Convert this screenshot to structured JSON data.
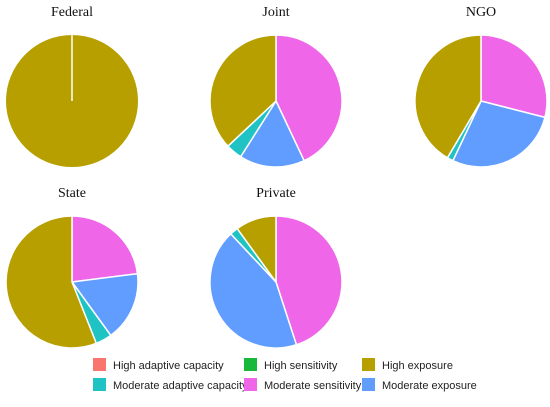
{
  "chart_data": {
    "type": "pie",
    "categories": [
      "High adaptive capacity",
      "Moderate adaptive capacity",
      "High sensitivity",
      "Moderate sensitivity",
      "High exposure",
      "Moderate exposure"
    ],
    "colors": {
      "High adaptive capacity": "#F8766D",
      "Moderate adaptive capacity": "#1FC3C3",
      "High sensitivity": "#18B83A",
      "Moderate sensitivity": "#F066E8",
      "High exposure": "#B79F00",
      "Moderate exposure": "#619CFF"
    },
    "pies": [
      {
        "title": "Federal",
        "slices": [
          {
            "category": "High exposure",
            "value": 100.0
          }
        ]
      },
      {
        "title": "Joint",
        "slices": [
          {
            "category": "Moderate sensitivity",
            "value": 43
          },
          {
            "category": "Moderate exposure",
            "value": 16
          },
          {
            "category": "Moderate adaptive capacity",
            "value": 4
          },
          {
            "category": "High exposure",
            "value": 37
          }
        ]
      },
      {
        "title": "NGO",
        "slices": [
          {
            "category": "Moderate sensitivity",
            "value": 29
          },
          {
            "category": "Moderate exposure",
            "value": 28
          },
          {
            "category": "Moderate adaptive capacity",
            "value": 1.5
          },
          {
            "category": "High exposure",
            "value": 41.5
          }
        ]
      },
      {
        "title": "State",
        "slices": [
          {
            "category": "Moderate sensitivity",
            "value": 23
          },
          {
            "category": "Moderate exposure",
            "value": 17
          },
          {
            "category": "Moderate adaptive capacity",
            "value": 4
          },
          {
            "category": "High exposure",
            "value": 56
          }
        ]
      },
      {
        "title": "Private",
        "slices": [
          {
            "category": "Moderate sensitivity",
            "value": 45
          },
          {
            "category": "Moderate exposure",
            "value": 43
          },
          {
            "category": "Moderate adaptive capacity",
            "value": 2
          },
          {
            "category": "High exposure",
            "value": 10
          }
        ]
      }
    ],
    "legend": {
      "placement": "bottom",
      "items": [
        "High adaptive capacity",
        "Moderate adaptive capacity",
        "High sensitivity",
        "Moderate sensitivity",
        "High exposure",
        "Moderate exposure"
      ]
    }
  }
}
